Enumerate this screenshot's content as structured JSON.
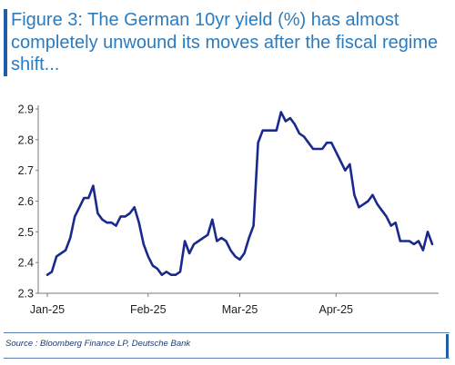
{
  "title": "Figure 3: The German 10yr yield (%) has almost completely unwound its moves after the fiscal regime shift...",
  "source": "Source : Bloomberg Finance LP, Deutsche Bank",
  "colors": {
    "title": "#2a7cc0",
    "line": "#1a2a8c",
    "accent_bar": "#1e5fa8"
  },
  "chart_data": {
    "type": "line",
    "title": "Figure 3: The German 10yr yield (%) has almost completely unwound its moves after the fiscal regime shift...",
    "xlabel": "",
    "ylabel": "",
    "ylim": [
      2.3,
      2.9
    ],
    "yticks": [
      "2.3",
      "2.4",
      "2.5",
      "2.6",
      "2.7",
      "2.8",
      "2.9"
    ],
    "xticks": [
      "Jan-25",
      "Feb-25",
      "Mar-25",
      "Apr-25"
    ],
    "grid": false,
    "legend": "none",
    "x": [
      0,
      1,
      2,
      3,
      4,
      5,
      6,
      7,
      8,
      9,
      10,
      11,
      12,
      13,
      14,
      15,
      16,
      17,
      18,
      19,
      20,
      21,
      22,
      23,
      24,
      25,
      26,
      27,
      28,
      29,
      30,
      31,
      32,
      33,
      34,
      35,
      36,
      37,
      38,
      39,
      40,
      41,
      42,
      43,
      44,
      45,
      46,
      47,
      48,
      49,
      50,
      51,
      52,
      53,
      54,
      55,
      56,
      57,
      58,
      59,
      60,
      61,
      62,
      63,
      64,
      65,
      66,
      67,
      68,
      69,
      70,
      71,
      72,
      73,
      74,
      75,
      76,
      77,
      78,
      79,
      80,
      81,
      82,
      83,
      84
    ],
    "series": [
      {
        "values": [
          2.36,
          2.37,
          2.42,
          2.43,
          2.44,
          2.48,
          2.55,
          2.58,
          2.61,
          2.61,
          2.65,
          2.56,
          2.54,
          2.53,
          2.53,
          2.52,
          2.55,
          2.55,
          2.56,
          2.58,
          2.53,
          2.46,
          2.42,
          2.39,
          2.38,
          2.36,
          2.37,
          2.36,
          2.36,
          2.37,
          2.47,
          2.43,
          2.46,
          2.47,
          2.48,
          2.49,
          2.54,
          2.47,
          2.48,
          2.47,
          2.44,
          2.42,
          2.41,
          2.43,
          2.48,
          2.52,
          2.79,
          2.83,
          2.83,
          2.83,
          2.83,
          2.89,
          2.86,
          2.87,
          2.85,
          2.82,
          2.81,
          2.79,
          2.77,
          2.77,
          2.77,
          2.79,
          2.79,
          2.76,
          2.73,
          2.7,
          2.72,
          2.62,
          2.58,
          2.59,
          2.6,
          2.62,
          2.59,
          2.57,
          2.55,
          2.52,
          2.53,
          2.47,
          2.47,
          2.47,
          2.46,
          2.47,
          2.44,
          2.5,
          2.46
        ]
      }
    ]
  }
}
